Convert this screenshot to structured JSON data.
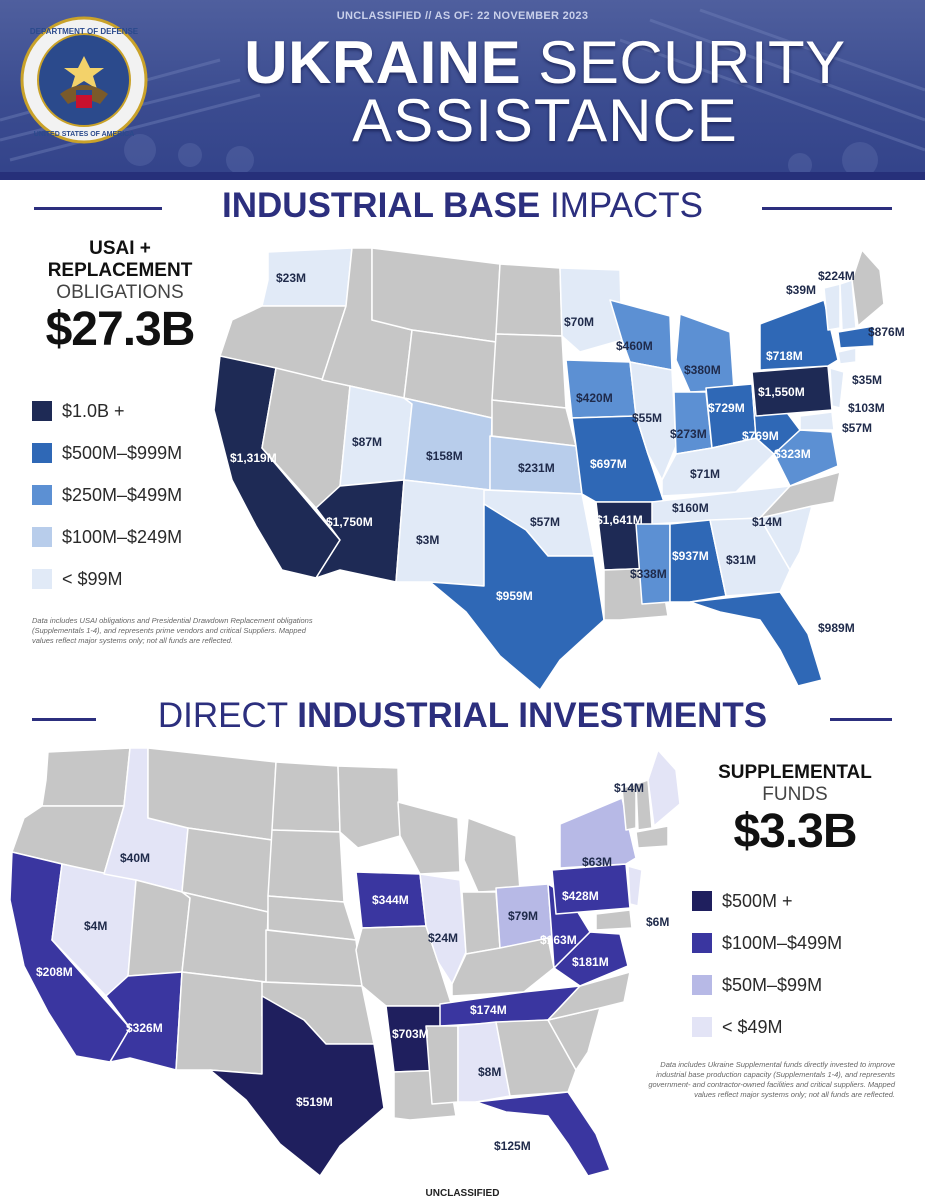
{
  "header": {
    "classification": "UNCLASSIFIED // AS OF: 22 NOVEMBER 2023",
    "title_line1_bold": "UKRAINE",
    "title_line1_light": " SECURITY",
    "title_line2": "ASSISTANCE",
    "seal_text_top": "DEPARTMENT OF DEFENSE",
    "seal_text_bottom": "UNITED STATES OF AMERICA"
  },
  "section1": {
    "title_bold": "INDUSTRIAL BASE",
    "title_light": " IMPACTS",
    "total_label_line1": "USAI +",
    "total_label_line2": "REPLACEMENT",
    "total_label_line3": "OBLIGATIONS",
    "total_value": "$27.3B",
    "legend": [
      {
        "label": "$1.0B +",
        "color": "#1e2a55"
      },
      {
        "label": "$500M–$999M",
        "color": "#2f68b6"
      },
      {
        "label": "$250M–$499M",
        "color": "#5c90d3"
      },
      {
        "label": "$100M–$249M",
        "color": "#b8cdeb"
      },
      {
        "label": "< $99M",
        "color": "#e1eaf7"
      }
    ],
    "note": "Data includes USAI obligations and Presidential Drawdown Replacement obligations (Supplementals 1-4), and represents prime vendors and critical Suppliers. Mapped values reflect major systems only; not all funds are reflected.",
    "state_values": {
      "wa": "$23M",
      "ca": "$1,319M",
      "az": "$1,750M",
      "ut": "$87M",
      "co": "$158M",
      "nm": "$3M",
      "tx": "$959M",
      "ks": "$231M",
      "ok": "$57M",
      "mn": "$70M",
      "wi": "$460M",
      "ia": "$420M",
      "mo": "$697M",
      "ar": "$1,641M",
      "il": "$55M",
      "mi": "$380M",
      "in": "$273M",
      "oh": "$729M",
      "ky": "$71M",
      "tn": "$160M",
      "ms": "$338M",
      "al": "$937M",
      "ga": "$31M",
      "sc": "$14M",
      "fl": "$989M",
      "wv": "$769M",
      "va": "$323M",
      "pa": "$1,550M",
      "ny": "$718M",
      "ma": "$876M",
      "nh": "$39M",
      "me": "$224M",
      "ct": "$35M",
      "nj": "$103M",
      "md": "$57M"
    }
  },
  "section2": {
    "title_light": "DIRECT ",
    "title_bold": "INDUSTRIAL INVESTMENTS",
    "total_label_line1": "SUPPLEMENTAL",
    "total_label_line2": "FUNDS",
    "total_value": "$3.3B",
    "legend": [
      {
        "label": "$500M +",
        "color": "#1f1f5e"
      },
      {
        "label": "$100M–$499M",
        "color": "#3a36a0"
      },
      {
        "label": "$50M–$99M",
        "color": "#b7b9e6"
      },
      {
        "label": "< $49M",
        "color": "#e3e4f6"
      }
    ],
    "note": "Data includes Ukraine Supplemental funds directly invested to improve industrial base production capacity (Supplementals 1-4), and represents government- and contractor-owned facilities and critical suppliers. Mapped values reflect major systems only; not all funds are reflected.",
    "state_values": {
      "id": "$40M",
      "nv": "$4M",
      "ca": "$208M",
      "az": "$326M",
      "tx": "$519M",
      "ia": "$344M",
      "il": "$24M",
      "ar": "$703M",
      "tn": "$174M",
      "ms": "$8M",
      "fl": "$125M",
      "oh": "$79M",
      "wv": "$163M",
      "va": "$181M",
      "pa": "$428M",
      "ny": "$63M",
      "nj": "$6M",
      "me": "$14M"
    }
  },
  "footer": {
    "classification": "UNCLASSIFIED"
  }
}
